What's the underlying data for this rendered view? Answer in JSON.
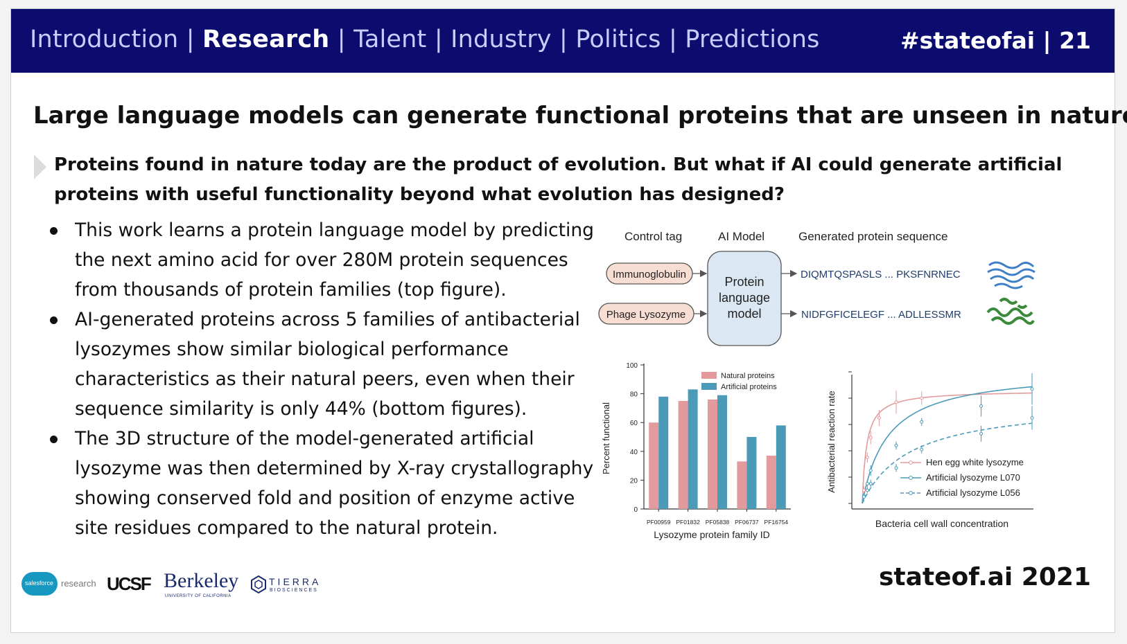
{
  "nav": {
    "items": [
      "Introduction",
      "Research",
      "Talent",
      "Industry",
      "Politics",
      "Predictions"
    ],
    "active": "Research",
    "hashtag": "#stateofai | 21"
  },
  "title": "Large language models can generate functional proteins that are unseen in nature",
  "lead": "Proteins found in nature today are the product of evolution. But what if AI could generate artificial proteins with useful functionality beyond what evolution has designed?",
  "bullets": [
    "This work learns a protein language model by predicting the next amino acid for over 280M protein sequences from thousands of protein families (top figure).",
    "AI-generated proteins across 5 families of antibacterial lysozymes show similar biological performance characteristics as their natural peers, even when their sequence similarity is only 44% (bottom figures).",
    "The 3D structure of the model-generated artificial lysozyme was then determined by X-ray crystallography showing conserved fold and position of enzyme active site residues compared to the natural protein."
  ],
  "diagram": {
    "headers": {
      "control_tag": "Control tag",
      "ai_model": "AI Model",
      "generated": "Generated protein sequence"
    },
    "tags": [
      "Immunoglobulin",
      "Phage Lysozyme"
    ],
    "model_lines": [
      "Protein",
      "language",
      "model"
    ],
    "sequences": [
      "DIQMTQSPASLS ... PKSFNRNEC",
      "NIDFGFICELEGF ... ADLLESSMR"
    ]
  },
  "chart_data": [
    {
      "type": "bar",
      "categories": [
        "PF00959",
        "PF01832",
        "PF05838",
        "PF06737",
        "PF16754"
      ],
      "series": [
        {
          "name": "Natural proteins",
          "values": [
            60,
            75,
            76,
            33,
            37
          ],
          "color": "#e39a9c"
        },
        {
          "name": "Artificial proteins",
          "values": [
            78,
            83,
            79,
            50,
            58
          ],
          "color": "#4b9ab8"
        }
      ],
      "xlabel": "Lysozyme protein family ID",
      "ylabel": "Percent functional",
      "ylim": [
        0,
        100
      ],
      "yticks": [
        0,
        20,
        40,
        60,
        80,
        100
      ],
      "legend": "top-right"
    },
    {
      "type": "line",
      "xlabel": "Bacteria cell wall concentration",
      "ylabel": "Antibacterial reaction rate",
      "x_range": [
        0,
        100
      ],
      "y_range": [
        0,
        100
      ],
      "legend": "bottom-right",
      "series": [
        {
          "name": "Hen egg white lysozyme",
          "color": "#e39a9c",
          "style": "solid",
          "Vmax": 86,
          "Km": 2.5,
          "points": [
            {
              "x": 1,
              "y": 10,
              "err": 3
            },
            {
              "x": 3,
              "y": 35,
              "err": 4
            },
            {
              "x": 5,
              "y": 50,
              "err": 5
            },
            {
              "x": 10,
              "y": 65,
              "err": 6
            },
            {
              "x": 20,
              "y": 77,
              "err": 9
            },
            {
              "x": 35,
              "y": 80,
              "err": 5
            }
          ]
        },
        {
          "name": "Artificial lysozyme L070",
          "color": "#4b9ab8",
          "style": "solid",
          "Vmax": 102,
          "Km": 15,
          "points": [
            {
              "x": 1,
              "y": 6,
              "err": 2
            },
            {
              "x": 3,
              "y": 15,
              "err": 3
            },
            {
              "x": 5,
              "y": 25,
              "err": 4
            },
            {
              "x": 20,
              "y": 44,
              "err": 3
            },
            {
              "x": 35,
              "y": 62,
              "err": 3
            },
            {
              "x": 70,
              "y": 74,
              "err": 8
            },
            {
              "x": 100,
              "y": 87,
              "err": 12
            }
          ]
        },
        {
          "name": "Artificial lysozyme L056",
          "color": "#4b9ab8",
          "style": "dashed",
          "Vmax": 78,
          "Km": 28,
          "points": [
            {
              "x": 1,
              "y": 5,
              "err": 2
            },
            {
              "x": 3,
              "y": 10,
              "err": 2
            },
            {
              "x": 5,
              "y": 15,
              "err": 3
            },
            {
              "x": 20,
              "y": 27,
              "err": 3
            },
            {
              "x": 35,
              "y": 41,
              "err": 3
            },
            {
              "x": 70,
              "y": 53,
              "err": 6
            },
            {
              "x": 100,
              "y": 65,
              "err": 9
            }
          ]
        }
      ]
    }
  ],
  "footer": {
    "brand": "stateof.ai 2021",
    "logos": {
      "salesforce": "salesforce",
      "salesforce_suffix": "research",
      "ucsf": "UCSF",
      "berkeley": "Berkeley",
      "berkeley_sub": "UNIVERSITY OF CALIFORNIA",
      "tierra": "TIERRA",
      "tierra_sub": "BIOSCIENCES"
    }
  }
}
